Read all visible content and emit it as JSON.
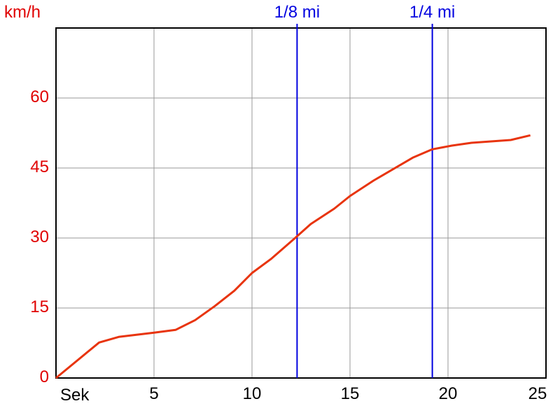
{
  "chart_data": {
    "type": "line",
    "title": "",
    "ylabel": "km/h",
    "xlabel": "Sek",
    "xlim": [
      0,
      25
    ],
    "ylim": [
      0,
      75
    ],
    "grid": true,
    "x_ticks": [
      "5",
      "10",
      "15",
      "20",
      "25"
    ],
    "y_ticks": [
      "0",
      "15",
      "30",
      "45",
      "60"
    ],
    "series": [
      {
        "color": "#e8340e",
        "x": [
          0,
          2.2,
          3.2,
          5,
          6.1,
          7.1,
          8.1,
          9.1,
          10,
          11,
          12.2,
          13,
          14.2,
          15,
          16.2,
          18.2,
          19.2,
          20.2,
          21.2,
          23.2,
          24.2
        ],
        "y": [
          0,
          7.6,
          8.8,
          9.7,
          10.3,
          12.4,
          15.4,
          18.7,
          22.5,
          25.6,
          30,
          33,
          36.3,
          39,
          42.3,
          47.2,
          49,
          49.8,
          50.4,
          51,
          52
        ]
      }
    ],
    "markers": [
      {
        "label": "1/8 mi",
        "x": 12.3,
        "color": "#0000e0"
      },
      {
        "label": "1/4 mi",
        "x": 19.2,
        "color": "#0000e0"
      }
    ]
  }
}
